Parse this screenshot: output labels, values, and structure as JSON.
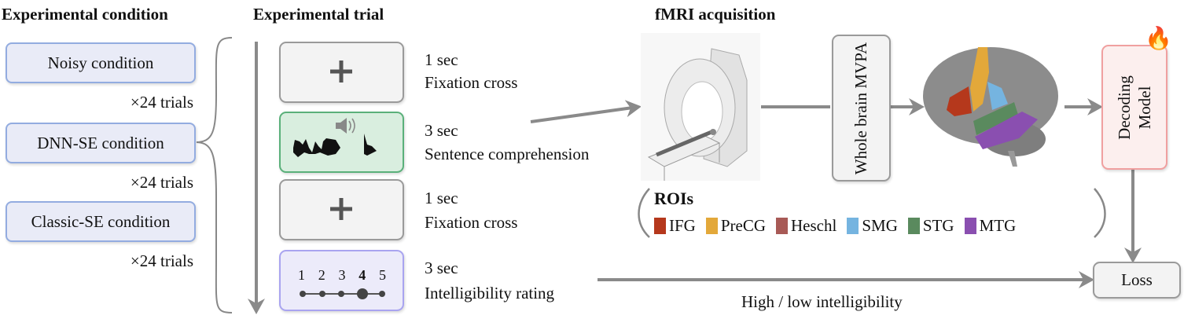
{
  "headers": {
    "condition": "Experimental condition",
    "trial": "Experimental trial",
    "fmri": "fMRI acquisition"
  },
  "conditions": [
    {
      "label": "Noisy condition",
      "trials": "×24 trials"
    },
    {
      "label": "DNN-SE condition",
      "trials": "×24 trials"
    },
    {
      "label": "Classic-SE condition",
      "trials": "×24 trials"
    }
  ],
  "trial_steps": [
    {
      "duration": "1 sec",
      "label": "Fixation cross",
      "icon": "plus-icon"
    },
    {
      "duration": "3 sec",
      "label": "Sentence comprehension",
      "icon": "speaker-icon"
    },
    {
      "duration": "1 sec",
      "label": "Fixation cross",
      "icon": "plus-icon"
    },
    {
      "duration": "3 sec",
      "label": "Intelligibility rating",
      "icon": "rating-scale"
    }
  ],
  "rating_scale": {
    "values": [
      "1",
      "2",
      "3",
      "4",
      "5"
    ],
    "selected": "4"
  },
  "mvpa": "Whole brain MVPA",
  "decoder": "Decoding Model",
  "loss": "Loss",
  "target_label": "High / low intelligibility",
  "rois": {
    "title": "ROIs",
    "items": [
      {
        "name": "IFG",
        "color": "#b5381c"
      },
      {
        "name": "PreCG",
        "color": "#e3a83a"
      },
      {
        "name": "Heschl",
        "color": "#a85a56"
      },
      {
        "name": "SMG",
        "color": "#75b4e0"
      },
      {
        "name": "STG",
        "color": "#5a8a5e"
      },
      {
        "name": "MTG",
        "color": "#8a4fb0"
      }
    ]
  },
  "colors": {
    "condition_fill": "#e9ebf7",
    "condition_border": "#93ace0",
    "speech_fill": "#d9eedf",
    "speech_border": "#5ab07a",
    "rating_fill": "#ecebfa",
    "rating_border": "#a9a4f0",
    "decoder_fill": "#fcefee",
    "decoder_border": "#f0a0a0",
    "arrow": "#8a8a8a"
  }
}
